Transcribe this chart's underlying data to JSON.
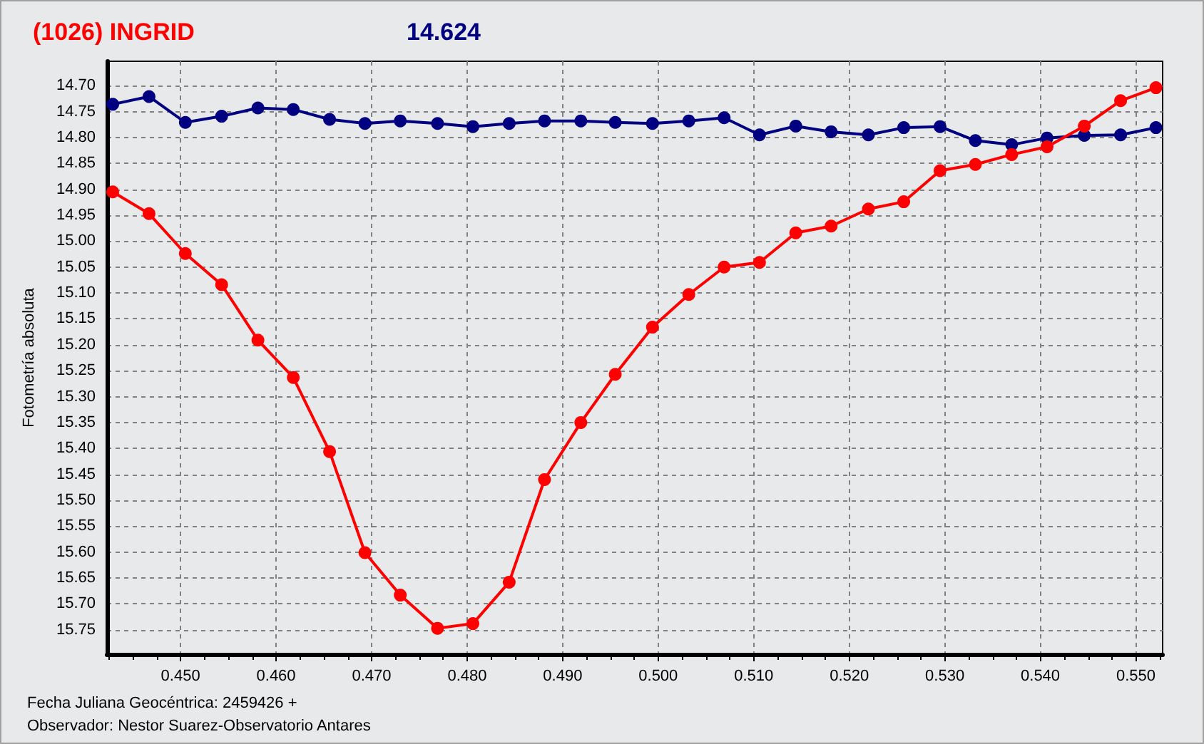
{
  "chart_data": {
    "type": "line",
    "title": "(1026) INGRID",
    "subtitle": "14.624",
    "xlabel": "Fecha Juliana Geocéntrica: 2459426 +",
    "ylabel": "Fotometría absoluta",
    "annotations": [
      "Observador: Nestor Suarez-Observatorio Antares"
    ],
    "x": [
      0.4429,
      0.4467,
      0.4505,
      0.4543,
      0.4581,
      0.4618,
      0.4656,
      0.4693,
      0.473,
      0.4769,
      0.4806,
      0.4844,
      0.4881,
      0.4919,
      0.4955,
      0.4994,
      0.5032,
      0.5069,
      0.5106,
      0.5144,
      0.5181,
      0.522,
      0.5257,
      0.5295,
      0.5332,
      0.537,
      0.5407,
      0.5446,
      0.5484,
      0.5521
    ],
    "series": [
      {
        "color": "#000080",
        "values": [
          14.736,
          14.721,
          14.771,
          14.759,
          14.743,
          14.746,
          14.765,
          14.773,
          14.768,
          14.773,
          14.779,
          14.773,
          14.768,
          14.768,
          14.771,
          14.773,
          14.768,
          14.762,
          14.795,
          14.778,
          14.789,
          14.795,
          14.781,
          14.779,
          14.806,
          14.814,
          14.801,
          14.796,
          14.795,
          14.781
        ]
      },
      {
        "color": "#ff0000",
        "values": [
          14.905,
          14.947,
          15.024,
          15.084,
          15.191,
          15.263,
          15.406,
          15.601,
          15.683,
          15.747,
          15.738,
          15.658,
          15.46,
          15.35,
          15.257,
          15.166,
          15.103,
          15.05,
          15.041,
          14.984,
          14.971,
          14.938,
          14.924,
          14.864,
          14.852,
          14.833,
          14.818,
          14.778,
          14.729,
          14.704
        ]
      }
    ],
    "xlim": [
      0.4423,
      0.5528
    ],
    "xticks": [
      {
        "value": 0.4425,
        "label": null
      },
      {
        "value": 0.445,
        "label": null
      },
      {
        "value": 0.4475,
        "label": null
      },
      {
        "value": 0.45,
        "label": "0.450"
      },
      {
        "value": 0.4525,
        "label": null
      },
      {
        "value": 0.455,
        "label": null
      },
      {
        "value": 0.4575,
        "label": null
      },
      {
        "value": 0.46,
        "label": "0.460"
      },
      {
        "value": 0.4625,
        "label": null
      },
      {
        "value": 0.465,
        "label": null
      },
      {
        "value": 0.4675,
        "label": null
      },
      {
        "value": 0.47,
        "label": "0.470"
      },
      {
        "value": 0.4725,
        "label": null
      },
      {
        "value": 0.475,
        "label": null
      },
      {
        "value": 0.4775,
        "label": null
      },
      {
        "value": 0.48,
        "label": "0.480"
      },
      {
        "value": 0.4825,
        "label": null
      },
      {
        "value": 0.485,
        "label": null
      },
      {
        "value": 0.4875,
        "label": null
      },
      {
        "value": 0.49,
        "label": "0.490"
      },
      {
        "value": 0.4925,
        "label": null
      },
      {
        "value": 0.495,
        "label": null
      },
      {
        "value": 0.4975,
        "label": null
      },
      {
        "value": 0.5,
        "label": "0.500"
      },
      {
        "value": 0.5025,
        "label": null
      },
      {
        "value": 0.505,
        "label": null
      },
      {
        "value": 0.5075,
        "label": null
      },
      {
        "value": 0.51,
        "label": "0.510"
      },
      {
        "value": 0.5125,
        "label": null
      },
      {
        "value": 0.515,
        "label": null
      },
      {
        "value": 0.5175,
        "label": null
      },
      {
        "value": 0.52,
        "label": "0.520"
      },
      {
        "value": 0.5225,
        "label": null
      },
      {
        "value": 0.525,
        "label": null
      },
      {
        "value": 0.5275,
        "label": null
      },
      {
        "value": 0.53,
        "label": "0.530"
      },
      {
        "value": 0.5325,
        "label": null
      },
      {
        "value": 0.535,
        "label": null
      },
      {
        "value": 0.5375,
        "label": null
      },
      {
        "value": 0.54,
        "label": "0.540"
      },
      {
        "value": 0.5425,
        "label": null
      },
      {
        "value": 0.545,
        "label": null
      },
      {
        "value": 0.5475,
        "label": null
      },
      {
        "value": 0.55,
        "label": "0.550"
      },
      {
        "value": 0.5525,
        "label": null
      }
    ],
    "ylim": [
      15.797,
      14.653
    ],
    "yticks": [
      {
        "value": 14.7,
        "label": "14.70"
      },
      {
        "value": 14.75,
        "label": "14.75"
      },
      {
        "value": 14.8,
        "label": "14.80"
      },
      {
        "value": 14.85,
        "label": "14.85"
      },
      {
        "value": 14.9,
        "label": "14.90"
      },
      {
        "value": 14.95,
        "label": "14.95"
      },
      {
        "value": 15.0,
        "label": "15.00"
      },
      {
        "value": 15.05,
        "label": "15.05"
      },
      {
        "value": 15.1,
        "label": "15.10"
      },
      {
        "value": 15.15,
        "label": "15.15"
      },
      {
        "value": 15.2,
        "label": "15.20"
      },
      {
        "value": 15.25,
        "label": "15.25"
      },
      {
        "value": 15.3,
        "label": "15.30"
      },
      {
        "value": 15.35,
        "label": "15.35"
      },
      {
        "value": 15.4,
        "label": "15.40"
      },
      {
        "value": 15.45,
        "label": "15.45"
      },
      {
        "value": 15.5,
        "label": "15.50"
      },
      {
        "value": 15.55,
        "label": "15.55"
      },
      {
        "value": 15.6,
        "label": "15.60"
      },
      {
        "value": 15.65,
        "label": "15.65"
      },
      {
        "value": 15.7,
        "label": "15.70"
      },
      {
        "value": 15.75,
        "label": "15.75"
      }
    ],
    "grid": true,
    "marker": "circle",
    "line_style": "solid"
  }
}
